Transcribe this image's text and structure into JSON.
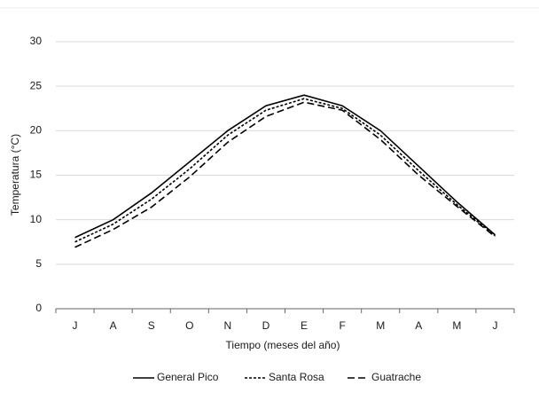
{
  "chart_data": {
    "type": "line",
    "x_label": "Tiempo (meses del año)",
    "y_label": "Temperatura (°C)",
    "categories": [
      "J",
      "A",
      "S",
      "O",
      "N",
      "D",
      "E",
      "F",
      "M",
      "A",
      "M",
      "J"
    ],
    "series": [
      {
        "name": "General Pico",
        "color": "#000000",
        "style": "solid",
        "values": [
          8.0,
          10.0,
          13.0,
          16.5,
          20.0,
          22.8,
          24.0,
          22.8,
          20.0,
          16.0,
          12.0,
          8.3
        ]
      },
      {
        "name": "Santa Rosa",
        "color": "#000000",
        "style": "dotted",
        "values": [
          7.5,
          9.5,
          12.3,
          15.7,
          19.5,
          22.3,
          23.6,
          22.5,
          19.5,
          15.5,
          11.7,
          8.2
        ]
      },
      {
        "name": "Guatrache",
        "color": "#000000",
        "style": "dashed",
        "values": [
          6.9,
          8.9,
          11.4,
          14.8,
          18.7,
          21.6,
          23.2,
          22.3,
          19.0,
          15.0,
          11.5,
          8.1
        ]
      }
    ],
    "ylim": [
      0,
      30
    ],
    "yticks": [
      0,
      5,
      10,
      15,
      20,
      25,
      30
    ],
    "grid": true,
    "legend": "bottom"
  }
}
